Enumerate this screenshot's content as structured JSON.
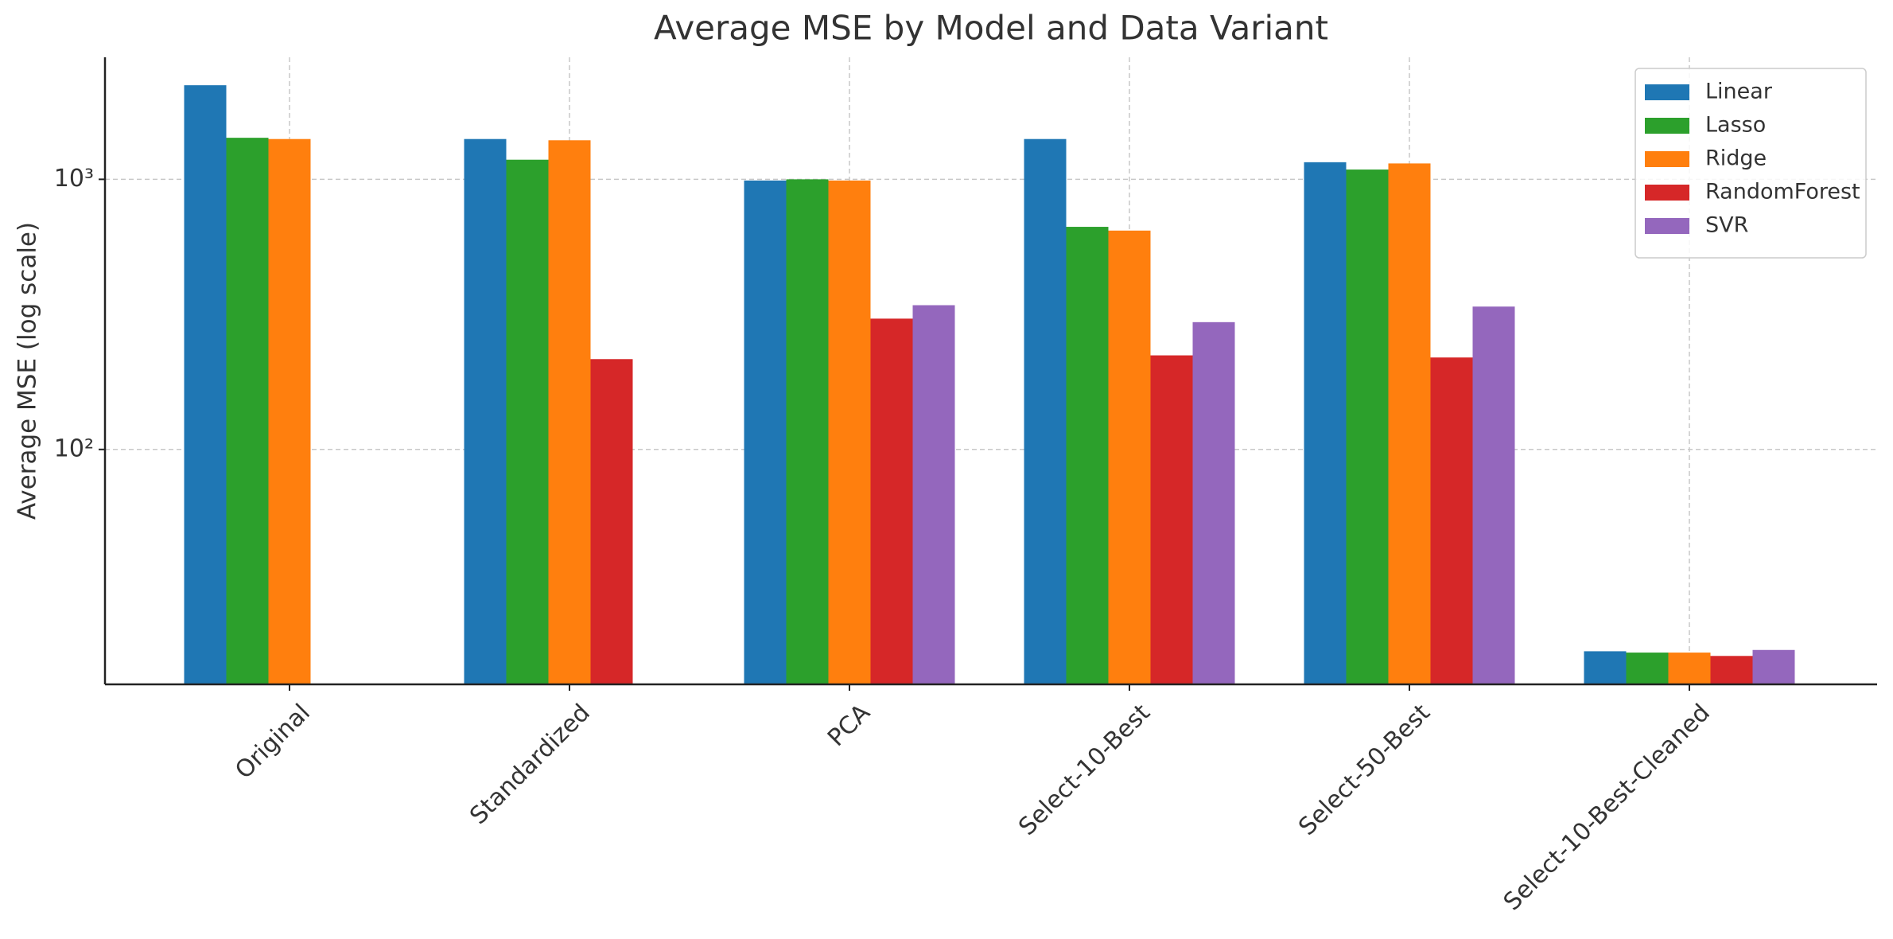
{
  "chart_data": {
    "type": "bar",
    "title": "Average MSE by Model and Data Variant",
    "y_label": "Average MSE (log scale)",
    "log_scale": true,
    "grid": true,
    "legend": "upper right",
    "categories": [
      "Original",
      "Standardized",
      "PCA",
      "Select-10-Best",
      "Select-50-Best",
      "Select-10-Best-Cleaned"
    ],
    "series": [
      {
        "name": "Linear",
        "color": "#1f77b4",
        "values": [
          2230,
          1410,
          990,
          1410,
          1157,
          17.9
        ]
      },
      {
        "name": "Lasso",
        "color": "#2ca02c",
        "values": [
          1425,
          1182,
          1000,
          667,
          1087,
          17.7
        ]
      },
      {
        "name": "Ridge",
        "color": "#ff7f0e",
        "values": [
          1410,
          1395,
          990,
          646,
          1145,
          17.7
        ]
      },
      {
        "name": "RandomForest",
        "color": "#d62728",
        "values": [
          null,
          216,
          305,
          223,
          219,
          17.2
        ]
      },
      {
        "name": "SVR",
        "color": "#9467bd",
        "values": [
          null,
          null,
          342,
          296,
          338,
          18.1
        ]
      }
    ],
    "ylim": [
      13.5,
      2830
    ],
    "yticks": [
      {
        "value": 100,
        "label": "10²"
      },
      {
        "value": 1000,
        "label": "10³"
      }
    ]
  }
}
